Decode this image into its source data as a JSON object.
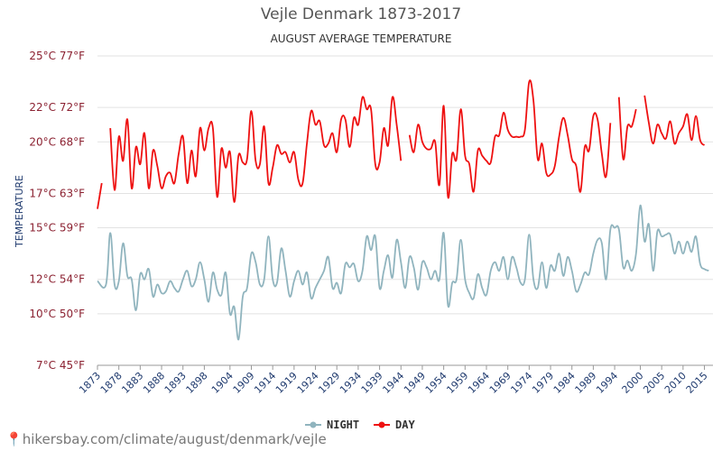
{
  "chart_data": {
    "type": "line",
    "title": "Vejle Denmark 1873-2017",
    "subtitle": "AUGUST AVERAGE TEMPERATURE",
    "ylabel": "TEMPERATURE",
    "ylim": [
      7,
      25
    ],
    "y_ticks": [
      {
        "value": 7,
        "label": "7°C 45°F"
      },
      {
        "value": 10,
        "label": "10°C 50°F"
      },
      {
        "value": 12,
        "label": "12°C 54°F"
      },
      {
        "value": 15,
        "label": "15°C 59°F"
      },
      {
        "value": 17,
        "label": "17°C 63°F"
      },
      {
        "value": 20,
        "label": "20°C 68°F"
      },
      {
        "value": 22,
        "label": "22°C 72°F"
      },
      {
        "value": 25,
        "label": "25°C 77°F"
      }
    ],
    "xlim": [
      1873,
      2017
    ],
    "x_ticks": [
      1873,
      1878,
      1883,
      1888,
      1893,
      1898,
      1904,
      1909,
      1914,
      1919,
      1924,
      1929,
      1934,
      1939,
      1944,
      1949,
      1954,
      1959,
      1964,
      1969,
      1974,
      1979,
      1984,
      1989,
      1994,
      2000,
      2005,
      2010,
      2015
    ],
    "series": [
      {
        "name": "NIGHT",
        "color": "#90b4be",
        "points": [
          [
            1873,
            11.9
          ],
          [
            1875,
            11.7
          ],
          [
            1876,
            14.7
          ],
          [
            1877,
            11.7
          ],
          [
            1878,
            11.9
          ],
          [
            1879,
            14.1
          ],
          [
            1880,
            12.2
          ],
          [
            1881,
            12.0
          ],
          [
            1882,
            10.2
          ],
          [
            1883,
            12.3
          ],
          [
            1884,
            12.0
          ],
          [
            1885,
            12.6
          ],
          [
            1886,
            11.0
          ],
          [
            1887,
            11.7
          ],
          [
            1888,
            11.2
          ],
          [
            1889,
            11.3
          ],
          [
            1890,
            11.9
          ],
          [
            1891,
            11.5
          ],
          [
            1892,
            11.3
          ],
          [
            1893,
            12.0
          ],
          [
            1894,
            12.5
          ],
          [
            1895,
            11.6
          ],
          [
            1896,
            12.0
          ],
          [
            1897,
            13.0
          ],
          [
            1898,
            12.0
          ],
          [
            1899,
            10.7
          ],
          [
            1900,
            12.4
          ],
          [
            1901,
            11.4
          ],
          [
            1902,
            11.1
          ],
          [
            1903,
            12.4
          ],
          [
            1904,
            10.0
          ],
          [
            1905,
            10.4
          ],
          [
            1906,
            8.5
          ],
          [
            1907,
            11.0
          ],
          [
            1908,
            11.5
          ],
          [
            1909,
            13.5
          ],
          [
            1910,
            13.0
          ],
          [
            1911,
            11.7
          ],
          [
            1912,
            12.0
          ],
          [
            1913,
            14.5
          ],
          [
            1914,
            12.0
          ],
          [
            1915,
            11.8
          ],
          [
            1916,
            13.8
          ],
          [
            1917,
            12.5
          ],
          [
            1918,
            11.0
          ],
          [
            1919,
            11.9
          ],
          [
            1920,
            12.5
          ],
          [
            1921,
            11.7
          ],
          [
            1922,
            12.4
          ],
          [
            1923,
            10.9
          ],
          [
            1924,
            11.5
          ],
          [
            1925,
            12.0
          ],
          [
            1926,
            12.5
          ],
          [
            1927,
            13.3
          ],
          [
            1928,
            11.5
          ],
          [
            1929,
            11.8
          ],
          [
            1930,
            11.2
          ],
          [
            1931,
            12.9
          ],
          [
            1932,
            12.7
          ],
          [
            1933,
            12.9
          ],
          [
            1934,
            11.9
          ],
          [
            1935,
            12.5
          ],
          [
            1936,
            14.5
          ],
          [
            1937,
            13.7
          ],
          [
            1938,
            14.5
          ],
          [
            1939,
            11.5
          ],
          [
            1940,
            12.5
          ],
          [
            1941,
            13.4
          ],
          [
            1942,
            12.1
          ],
          [
            1943,
            14.3
          ],
          [
            1944,
            13.0
          ],
          [
            1945,
            11.5
          ],
          [
            1946,
            13.3
          ],
          [
            1947,
            12.7
          ],
          [
            1948,
            11.4
          ],
          [
            1949,
            13.0
          ],
          [
            1950,
            12.7
          ],
          [
            1951,
            12.0
          ],
          [
            1952,
            12.5
          ],
          [
            1953,
            12.0
          ],
          [
            1954,
            14.7
          ],
          [
            1955,
            10.5
          ],
          [
            1956,
            11.8
          ],
          [
            1957,
            12.0
          ],
          [
            1958,
            14.3
          ],
          [
            1959,
            12.0
          ],
          [
            1960,
            11.2
          ],
          [
            1961,
            10.9
          ],
          [
            1962,
            12.3
          ],
          [
            1963,
            11.5
          ],
          [
            1964,
            11.1
          ],
          [
            1965,
            12.5
          ],
          [
            1966,
            13.0
          ],
          [
            1967,
            12.5
          ],
          [
            1968,
            13.3
          ],
          [
            1969,
            12.0
          ],
          [
            1970,
            13.3
          ],
          [
            1971,
            12.7
          ],
          [
            1972,
            11.8
          ],
          [
            1973,
            12.0
          ],
          [
            1974,
            14.6
          ],
          [
            1975,
            12.0
          ],
          [
            1976,
            11.5
          ],
          [
            1977,
            13.0
          ],
          [
            1978,
            11.5
          ],
          [
            1979,
            12.8
          ],
          [
            1980,
            12.5
          ],
          [
            1981,
            13.5
          ],
          [
            1982,
            12.2
          ],
          [
            1983,
            13.3
          ],
          [
            1984,
            12.5
          ],
          [
            1985,
            11.3
          ],
          [
            1986,
            11.7
          ],
          [
            1987,
            12.4
          ],
          [
            1988,
            12.3
          ],
          [
            1989,
            13.5
          ],
          [
            1990,
            14.3
          ],
          [
            1991,
            14.1
          ],
          [
            1992,
            12.0
          ],
          [
            1993,
            14.9
          ],
          [
            1994,
            15.0
          ],
          [
            1995,
            14.9
          ],
          [
            1996,
            12.7
          ],
          [
            1997,
            13.1
          ],
          [
            1998,
            12.5
          ],
          [
            1999,
            13.5
          ],
          [
            2000,
            16.3
          ],
          [
            2001,
            14.2
          ],
          [
            2002,
            15.2
          ],
          [
            2003,
            12.5
          ],
          [
            2004,
            14.8
          ],
          [
            2005,
            14.5
          ],
          [
            2006,
            14.6
          ],
          [
            2007,
            14.6
          ],
          [
            2008,
            13.5
          ],
          [
            2009,
            14.2
          ],
          [
            2010,
            13.5
          ],
          [
            2011,
            14.2
          ],
          [
            2012,
            13.6
          ],
          [
            2013,
            14.5
          ],
          [
            2014,
            12.9
          ],
          [
            2015,
            12.6
          ],
          [
            2016,
            12.5
          ]
        ]
      },
      {
        "name": "DAY",
        "color": "#ee1111",
        "points": [
          [
            1873,
            16.1
          ],
          [
            1874,
            17.6
          ],
          [
            1875,
            null
          ],
          [
            1876,
            20.8
          ],
          [
            1877,
            17.2
          ],
          [
            1878,
            20.3
          ],
          [
            1879,
            18.9
          ],
          [
            1880,
            21.3
          ],
          [
            1881,
            17.3
          ],
          [
            1882,
            19.7
          ],
          [
            1883,
            18.7
          ],
          [
            1884,
            20.5
          ],
          [
            1885,
            17.3
          ],
          [
            1886,
            19.5
          ],
          [
            1887,
            18.6
          ],
          [
            1888,
            17.3
          ],
          [
            1889,
            18.0
          ],
          [
            1890,
            18.2
          ],
          [
            1891,
            17.6
          ],
          [
            1892,
            19.3
          ],
          [
            1893,
            20.3
          ],
          [
            1894,
            17.6
          ],
          [
            1895,
            19.5
          ],
          [
            1896,
            18.0
          ],
          [
            1897,
            20.8
          ],
          [
            1898,
            19.5
          ],
          [
            1899,
            20.8
          ],
          [
            1900,
            20.8
          ],
          [
            1901,
            16.8
          ],
          [
            1902,
            19.6
          ],
          [
            1903,
            18.5
          ],
          [
            1904,
            19.4
          ],
          [
            1905,
            16.5
          ],
          [
            1906,
            19.2
          ],
          [
            1907,
            18.8
          ],
          [
            1908,
            19.0
          ],
          [
            1909,
            21.8
          ],
          [
            1910,
            18.9
          ],
          [
            1911,
            18.7
          ],
          [
            1912,
            20.9
          ],
          [
            1913,
            17.6
          ],
          [
            1914,
            18.5
          ],
          [
            1915,
            19.8
          ],
          [
            1916,
            19.3
          ],
          [
            1917,
            19.4
          ],
          [
            1918,
            18.8
          ],
          [
            1919,
            19.4
          ],
          [
            1920,
            17.8
          ],
          [
            1921,
            17.6
          ],
          [
            1922,
            19.9
          ],
          [
            1923,
            21.8
          ],
          [
            1924,
            21.0
          ],
          [
            1925,
            21.2
          ],
          [
            1926,
            19.8
          ],
          [
            1927,
            19.9
          ],
          [
            1928,
            20.5
          ],
          [
            1929,
            19.4
          ],
          [
            1930,
            21.3
          ],
          [
            1931,
            21.3
          ],
          [
            1932,
            19.7
          ],
          [
            1933,
            21.4
          ],
          [
            1934,
            21.0
          ],
          [
            1935,
            22.6
          ],
          [
            1936,
            21.9
          ],
          [
            1937,
            21.9
          ],
          [
            1938,
            18.7
          ],
          [
            1939,
            18.8
          ],
          [
            1940,
            20.8
          ],
          [
            1941,
            19.8
          ],
          [
            1942,
            22.6
          ],
          [
            1943,
            21.0
          ],
          [
            1944,
            18.9
          ],
          [
            1945,
            null
          ],
          [
            1946,
            20.4
          ],
          [
            1947,
            19.4
          ],
          [
            1948,
            21.0
          ],
          [
            1949,
            20.0
          ],
          [
            1950,
            19.6
          ],
          [
            1951,
            19.6
          ],
          [
            1952,
            20.0
          ],
          [
            1953,
            17.5
          ],
          [
            1954,
            22.1
          ],
          [
            1955,
            16.8
          ],
          [
            1956,
            19.3
          ],
          [
            1957,
            19.0
          ],
          [
            1958,
            21.9
          ],
          [
            1959,
            19.2
          ],
          [
            1960,
            18.7
          ],
          [
            1961,
            17.1
          ],
          [
            1962,
            19.5
          ],
          [
            1963,
            19.2
          ],
          [
            1964,
            18.9
          ],
          [
            1965,
            18.8
          ],
          [
            1966,
            20.3
          ],
          [
            1967,
            20.4
          ],
          [
            1968,
            21.7
          ],
          [
            1969,
            20.7
          ],
          [
            1970,
            20.3
          ],
          [
            1971,
            20.3
          ],
          [
            1972,
            20.3
          ],
          [
            1973,
            20.7
          ],
          [
            1974,
            23.5
          ],
          [
            1975,
            22.4
          ],
          [
            1976,
            19.0
          ],
          [
            1977,
            19.9
          ],
          [
            1978,
            18.2
          ],
          [
            1979,
            18.1
          ],
          [
            1980,
            18.6
          ],
          [
            1981,
            20.3
          ],
          [
            1982,
            21.4
          ],
          [
            1983,
            20.4
          ],
          [
            1984,
            19.0
          ],
          [
            1985,
            18.6
          ],
          [
            1986,
            17.1
          ],
          [
            1987,
            19.7
          ],
          [
            1988,
            19.5
          ],
          [
            1989,
            21.5
          ],
          [
            1990,
            21.3
          ],
          [
            1991,
            19.3
          ],
          [
            1992,
            18.0
          ],
          [
            1993,
            21.1
          ],
          [
            1994,
            null
          ],
          [
            1995,
            22.6
          ],
          [
            1996,
            19.0
          ],
          [
            1997,
            20.9
          ],
          [
            1998,
            20.9
          ],
          [
            1999,
            21.9
          ],
          [
            2000,
            null
          ],
          [
            2001,
            22.7
          ],
          [
            2002,
            21.1
          ],
          [
            2003,
            19.9
          ],
          [
            2004,
            21.0
          ],
          [
            2005,
            20.5
          ],
          [
            2006,
            20.2
          ],
          [
            2007,
            21.2
          ],
          [
            2008,
            19.9
          ],
          [
            2009,
            20.5
          ],
          [
            2010,
            20.9
          ],
          [
            2011,
            21.6
          ],
          [
            2012,
            20.1
          ],
          [
            2013,
            21.5
          ],
          [
            2014,
            20.1
          ],
          [
            2015,
            19.8
          ]
        ]
      }
    ]
  },
  "watermark": "hikersbay.com/climate/august/denmark/vejle"
}
